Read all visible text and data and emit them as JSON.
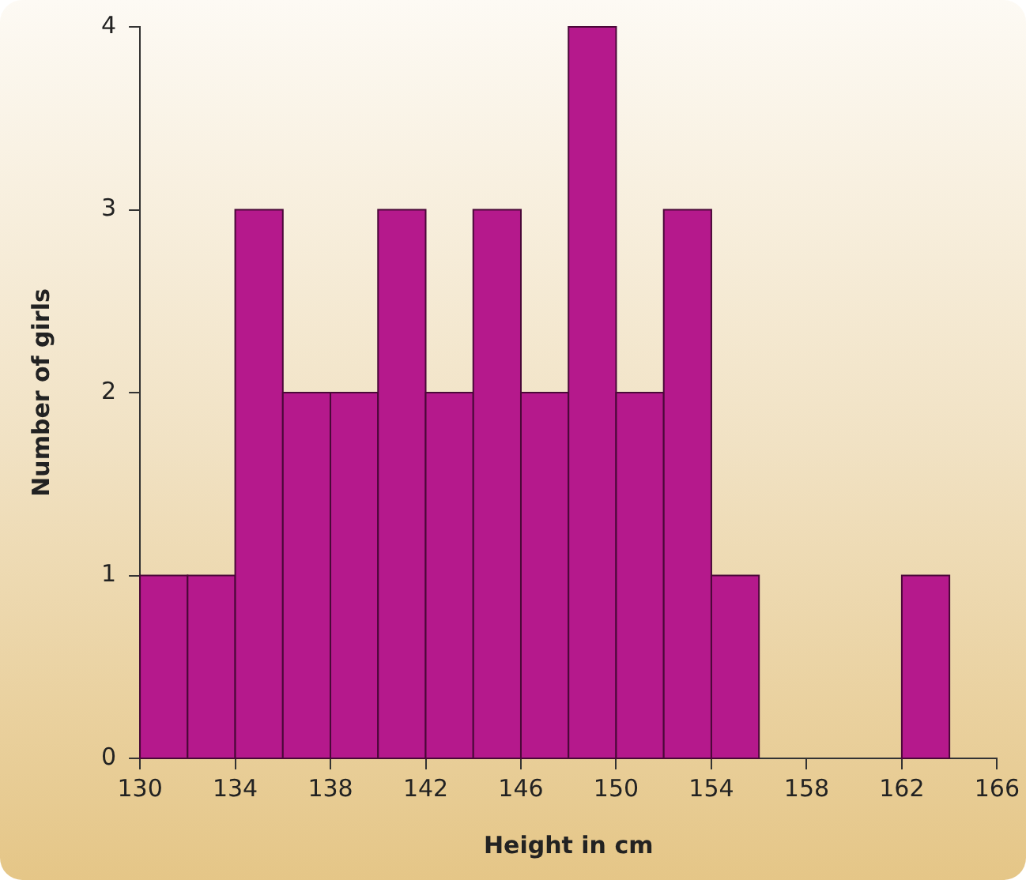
{
  "chart_data": {
    "type": "histogram",
    "xlabel": "Height in cm",
    "ylabel": "Number of girls",
    "bins": [
      130,
      132,
      134,
      136,
      138,
      140,
      142,
      144,
      146,
      148,
      150,
      152,
      154,
      156,
      158,
      160,
      162,
      164
    ],
    "values": [
      1,
      1,
      3,
      2,
      2,
      3,
      2,
      3,
      2,
      4,
      2,
      3,
      1,
      0,
      0,
      0,
      1
    ],
    "color": "#b5198c",
    "xlim": [
      130,
      166
    ],
    "xticks": [
      130,
      134,
      138,
      142,
      146,
      150,
      154,
      158,
      162,
      166
    ],
    "ylim": [
      0,
      4
    ],
    "yticks": [
      0,
      1,
      2,
      3,
      4
    ],
    "grid": false,
    "legend": false
  }
}
